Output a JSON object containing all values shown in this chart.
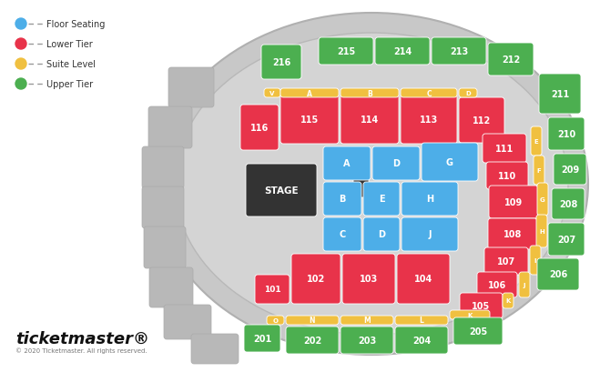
{
  "bg_color": "#ffffff",
  "colors": {
    "floor": "#4daee8",
    "lower": "#e8334a",
    "suite": "#f0c040",
    "upper": "#4caf50",
    "stage": "#333333",
    "gray_outer": "#c0c0c0",
    "gray_inner": "#cccccc",
    "gray_block": "#b8b8b8"
  },
  "legend": [
    {
      "label": "Floor Seating",
      "color": "#4daee8"
    },
    {
      "label": "Lower Tier",
      "color": "#e8334a"
    },
    {
      "label": "Suite Level",
      "color": "#f0c040"
    },
    {
      "label": "Upper Tier",
      "color": "#4caf50"
    }
  ],
  "ticketmaster_text": "ticketmaster®",
  "copyright_text": "© 2020 Ticketmaster. All rights reserved."
}
